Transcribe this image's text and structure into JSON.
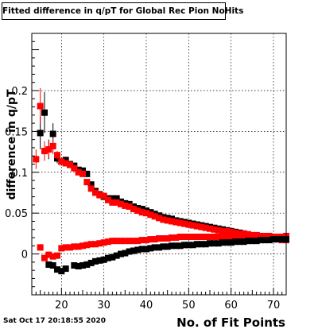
{
  "chart_data": {
    "type": "scatter",
    "title": "Fitted difference in q/pT for Global Rec Pion NoHits",
    "xlabel": "No. of Fit Points",
    "ylabel": "difference in q/pT",
    "xlim": [
      13,
      73
    ],
    "ylim": [
      -0.05,
      0.27
    ],
    "grid": true,
    "x_ticks": [
      20,
      30,
      40,
      50,
      60,
      70
    ],
    "y_ticks": [
      0,
      0.05,
      0.1,
      0.15,
      0.2
    ],
    "y_tick_labels": [
      "0",
      "0.05",
      "0.1",
      "0.15",
      "0.2"
    ],
    "series": [
      {
        "id": "black-mean",
        "color": "#000000",
        "points": [
          [
            15,
            0.148,
            0.02
          ],
          [
            16,
            0.173,
            0.025
          ],
          [
            17,
            0.128,
            0.012
          ],
          [
            18,
            0.147,
            0.013
          ],
          [
            19,
            0.117,
            0.006
          ],
          [
            20,
            0.113,
            0.005
          ],
          [
            21,
            0.115,
            0.004
          ],
          [
            22,
            0.11,
            0.003
          ],
          [
            23,
            0.108,
            0.003
          ],
          [
            24,
            0.103,
            0.003
          ],
          [
            25,
            0.102,
            0.003
          ],
          [
            26,
            0.098,
            0.002
          ],
          [
            27,
            0.085,
            0.002
          ],
          [
            28,
            0.077,
            0.002
          ],
          [
            29,
            0.073,
            0.002
          ],
          [
            30,
            0.07,
            0.002
          ],
          [
            31,
            0.068,
            0.002
          ],
          [
            32,
            0.068,
            0.002
          ],
          [
            33,
            0.068,
            0.002
          ],
          [
            34,
            0.064,
            0.002
          ],
          [
            35,
            0.062,
            0.002
          ],
          [
            36,
            0.061,
            0.002
          ],
          [
            37,
            0.058,
            0.002
          ],
          [
            38,
            0.056,
            0.002
          ],
          [
            39,
            0.055,
            0.002
          ],
          [
            40,
            0.053,
            0.002
          ],
          [
            41,
            0.051,
            0.002
          ],
          [
            42,
            0.049,
            0.002
          ],
          [
            43,
            0.047,
            0.002
          ],
          [
            44,
            0.045,
            0.002
          ],
          [
            45,
            0.044,
            0.002
          ],
          [
            46,
            0.043,
            0.002
          ],
          [
            47,
            0.041,
            0.002
          ],
          [
            48,
            0.04,
            0.002
          ],
          [
            49,
            0.039,
            0.002
          ],
          [
            50,
            0.038,
            0.002
          ],
          [
            51,
            0.037,
            0.002
          ],
          [
            52,
            0.036,
            0.002
          ],
          [
            53,
            0.035,
            0.002
          ],
          [
            54,
            0.034,
            0.002
          ],
          [
            55,
            0.033,
            0.002
          ],
          [
            56,
            0.032,
            0.002
          ],
          [
            57,
            0.031,
            0.002
          ],
          [
            58,
            0.03,
            0.002
          ],
          [
            59,
            0.029,
            0.002
          ],
          [
            60,
            0.028,
            0.002
          ],
          [
            61,
            0.027,
            0.002
          ],
          [
            62,
            0.026,
            0.002
          ],
          [
            63,
            0.025,
            0.002
          ],
          [
            64,
            0.024,
            0.002
          ],
          [
            65,
            0.023,
            0.002
          ],
          [
            66,
            0.023,
            0.002
          ],
          [
            67,
            0.022,
            0.002
          ],
          [
            68,
            0.021,
            0.002
          ],
          [
            69,
            0.021,
            0.002
          ],
          [
            70,
            0.02,
            0.002
          ],
          [
            71,
            0.02,
            0.002
          ],
          [
            72,
            0.02,
            0.002
          ],
          [
            73,
            0.019,
            0.002
          ]
        ]
      },
      {
        "id": "red-mean",
        "color": "#ff0000",
        "points": [
          [
            14,
            0.116,
            0.012
          ],
          [
            15,
            0.181,
            0.022
          ],
          [
            16,
            0.126,
            0.012
          ],
          [
            17,
            0.128,
            0.01
          ],
          [
            18,
            0.132,
            0.01
          ],
          [
            19,
            0.121,
            0.005
          ],
          [
            20,
            0.113,
            0.004
          ],
          [
            21,
            0.111,
            0.003
          ],
          [
            22,
            0.109,
            0.003
          ],
          [
            23,
            0.105,
            0.003
          ],
          [
            24,
            0.1,
            0.003
          ],
          [
            25,
            0.098,
            0.002
          ],
          [
            26,
            0.088,
            0.002
          ],
          [
            27,
            0.08,
            0.002
          ],
          [
            28,
            0.075,
            0.002
          ],
          [
            29,
            0.072,
            0.002
          ],
          [
            30,
            0.071,
            0.002
          ],
          [
            31,
            0.066,
            0.002
          ],
          [
            32,
            0.063,
            0.002
          ],
          [
            33,
            0.063,
            0.002
          ],
          [
            34,
            0.061,
            0.002
          ],
          [
            35,
            0.059,
            0.002
          ],
          [
            36,
            0.058,
            0.002
          ],
          [
            37,
            0.055,
            0.002
          ],
          [
            38,
            0.053,
            0.002
          ],
          [
            39,
            0.051,
            0.002
          ],
          [
            40,
            0.05,
            0.002
          ],
          [
            41,
            0.048,
            0.002
          ],
          [
            42,
            0.046,
            0.002
          ],
          [
            43,
            0.044,
            0.002
          ],
          [
            44,
            0.042,
            0.002
          ],
          [
            45,
            0.041,
            0.002
          ],
          [
            46,
            0.04,
            0.002
          ],
          [
            47,
            0.039,
            0.002
          ],
          [
            48,
            0.038,
            0.002
          ],
          [
            49,
            0.037,
            0.002
          ],
          [
            50,
            0.036,
            0.002
          ],
          [
            51,
            0.035,
            0.002
          ],
          [
            52,
            0.034,
            0.002
          ],
          [
            53,
            0.033,
            0.002
          ],
          [
            54,
            0.032,
            0.002
          ],
          [
            55,
            0.031,
            0.002
          ],
          [
            56,
            0.03,
            0.002
          ],
          [
            57,
            0.029,
            0.002
          ],
          [
            58,
            0.028,
            0.002
          ],
          [
            59,
            0.028,
            0.002
          ],
          [
            60,
            0.027,
            0.002
          ],
          [
            61,
            0.026,
            0.002
          ],
          [
            62,
            0.025,
            0.002
          ],
          [
            63,
            0.025,
            0.002
          ],
          [
            64,
            0.024,
            0.002
          ],
          [
            65,
            0.023,
            0.002
          ],
          [
            66,
            0.023,
            0.002
          ],
          [
            67,
            0.022,
            0.002
          ],
          [
            68,
            0.022,
            0.002
          ],
          [
            69,
            0.022,
            0.002
          ],
          [
            70,
            0.021,
            0.002
          ],
          [
            71,
            0.021,
            0.002
          ],
          [
            72,
            0.021,
            0.002
          ],
          [
            73,
            0.022,
            0.002
          ]
        ]
      },
      {
        "id": "red-low",
        "color": "#ff0000",
        "points": [
          [
            15,
            0.008,
            0.004
          ],
          [
            16,
            -0.005,
            0.003
          ],
          [
            17,
            -0.001,
            0.003
          ],
          [
            18,
            -0.003,
            0.002
          ],
          [
            19,
            -0.002,
            0.002
          ],
          [
            20,
            0.007,
            0.002
          ],
          [
            21,
            0.008,
            0.002
          ],
          [
            22,
            0.008,
            0.002
          ],
          [
            23,
            0.009,
            0.002
          ],
          [
            24,
            0.009,
            0.002
          ],
          [
            25,
            0.01,
            0.002
          ],
          [
            26,
            0.011,
            0.002
          ],
          [
            27,
            0.012,
            0.002
          ],
          [
            28,
            0.012,
            0.002
          ],
          [
            29,
            0.013,
            0.002
          ],
          [
            30,
            0.014,
            0.002
          ],
          [
            31,
            0.015,
            0.002
          ],
          [
            32,
            0.016,
            0.002
          ],
          [
            33,
            0.016,
            0.002
          ],
          [
            34,
            0.016,
            0.002
          ],
          [
            35,
            0.016,
            0.002
          ],
          [
            36,
            0.016,
            0.002
          ],
          [
            37,
            0.016,
            0.002
          ],
          [
            38,
            0.016,
            0.002
          ],
          [
            39,
            0.017,
            0.002
          ],
          [
            40,
            0.017,
            0.002
          ],
          [
            41,
            0.018,
            0.002
          ],
          [
            42,
            0.018,
            0.002
          ],
          [
            43,
            0.019,
            0.002
          ],
          [
            44,
            0.019,
            0.002
          ],
          [
            45,
            0.019,
            0.002
          ],
          [
            46,
            0.02,
            0.002
          ],
          [
            47,
            0.02,
            0.002
          ],
          [
            48,
            0.021,
            0.002
          ],
          [
            49,
            0.021,
            0.002
          ],
          [
            50,
            0.021,
            0.002
          ],
          [
            51,
            0.021,
            0.002
          ],
          [
            52,
            0.021,
            0.002
          ],
          [
            53,
            0.021,
            0.002
          ],
          [
            54,
            0.021,
            0.002
          ],
          [
            55,
            0.021,
            0.002
          ],
          [
            56,
            0.021,
            0.002
          ],
          [
            57,
            0.021,
            0.002
          ],
          [
            58,
            0.021,
            0.002
          ],
          [
            59,
            0.021,
            0.002
          ],
          [
            60,
            0.021,
            0.002
          ],
          [
            61,
            0.021,
            0.002
          ],
          [
            62,
            0.021,
            0.002
          ],
          [
            63,
            0.02,
            0.002
          ],
          [
            64,
            0.02,
            0.002
          ],
          [
            65,
            0.02,
            0.002
          ],
          [
            66,
            0.02,
            0.002
          ],
          [
            67,
            0.019,
            0.002
          ],
          [
            68,
            0.019,
            0.002
          ],
          [
            69,
            0.018,
            0.002
          ],
          [
            70,
            0.018,
            0.002
          ],
          [
            71,
            0.018,
            0.002
          ],
          [
            72,
            0.017,
            0.002
          ],
          [
            73,
            0.017,
            0.002
          ]
        ]
      },
      {
        "id": "black-low",
        "color": "#000000",
        "points": [
          [
            17,
            -0.013,
            0.003
          ],
          [
            18,
            -0.014,
            0.003
          ],
          [
            19,
            -0.019,
            0.003
          ],
          [
            20,
            -0.021,
            0.003
          ],
          [
            21,
            -0.018,
            0.002
          ],
          [
            23,
            -0.014,
            0.002
          ],
          [
            24,
            -0.015,
            0.002
          ],
          [
            25,
            -0.014,
            0.002
          ],
          [
            26,
            -0.013,
            0.002
          ],
          [
            27,
            -0.011,
            0.002
          ],
          [
            28,
            -0.009,
            0.002
          ],
          [
            29,
            -0.008,
            0.002
          ],
          [
            30,
            -0.007,
            0.002
          ],
          [
            31,
            -0.005,
            0.002
          ],
          [
            32,
            -0.004,
            0.002
          ],
          [
            33,
            -0.002,
            0.002
          ],
          [
            34,
            0.0,
            0.002
          ],
          [
            35,
            0.001,
            0.002
          ],
          [
            36,
            0.003,
            0.002
          ],
          [
            37,
            0.004,
            0.002
          ],
          [
            38,
            0.005,
            0.002
          ],
          [
            39,
            0.006,
            0.002
          ],
          [
            40,
            0.006,
            0.002
          ],
          [
            41,
            0.007,
            0.002
          ],
          [
            42,
            0.008,
            0.002
          ],
          [
            43,
            0.008,
            0.002
          ],
          [
            44,
            0.009,
            0.002
          ],
          [
            45,
            0.009,
            0.002
          ],
          [
            46,
            0.01,
            0.002
          ],
          [
            47,
            0.01,
            0.002
          ],
          [
            48,
            0.01,
            0.002
          ],
          [
            49,
            0.011,
            0.002
          ],
          [
            50,
            0.011,
            0.002
          ],
          [
            51,
            0.011,
            0.002
          ],
          [
            52,
            0.012,
            0.002
          ],
          [
            53,
            0.012,
            0.002
          ],
          [
            54,
            0.012,
            0.002
          ],
          [
            55,
            0.013,
            0.002
          ],
          [
            56,
            0.013,
            0.002
          ],
          [
            57,
            0.013,
            0.002
          ],
          [
            58,
            0.014,
            0.002
          ],
          [
            59,
            0.014,
            0.002
          ],
          [
            60,
            0.014,
            0.002
          ],
          [
            61,
            0.015,
            0.002
          ],
          [
            62,
            0.015,
            0.002
          ],
          [
            63,
            0.015,
            0.002
          ],
          [
            64,
            0.016,
            0.002
          ],
          [
            65,
            0.016,
            0.002
          ],
          [
            66,
            0.016,
            0.002
          ],
          [
            67,
            0.017,
            0.002
          ],
          [
            68,
            0.017,
            0.002
          ],
          [
            69,
            0.017,
            0.002
          ],
          [
            70,
            0.018,
            0.002
          ],
          [
            71,
            0.018,
            0.002
          ],
          [
            72,
            0.018,
            0.002
          ],
          [
            73,
            0.018,
            0.002
          ]
        ]
      }
    ]
  },
  "footer": {
    "timestamp": "Sat Oct 17 20:18:55 2020"
  }
}
